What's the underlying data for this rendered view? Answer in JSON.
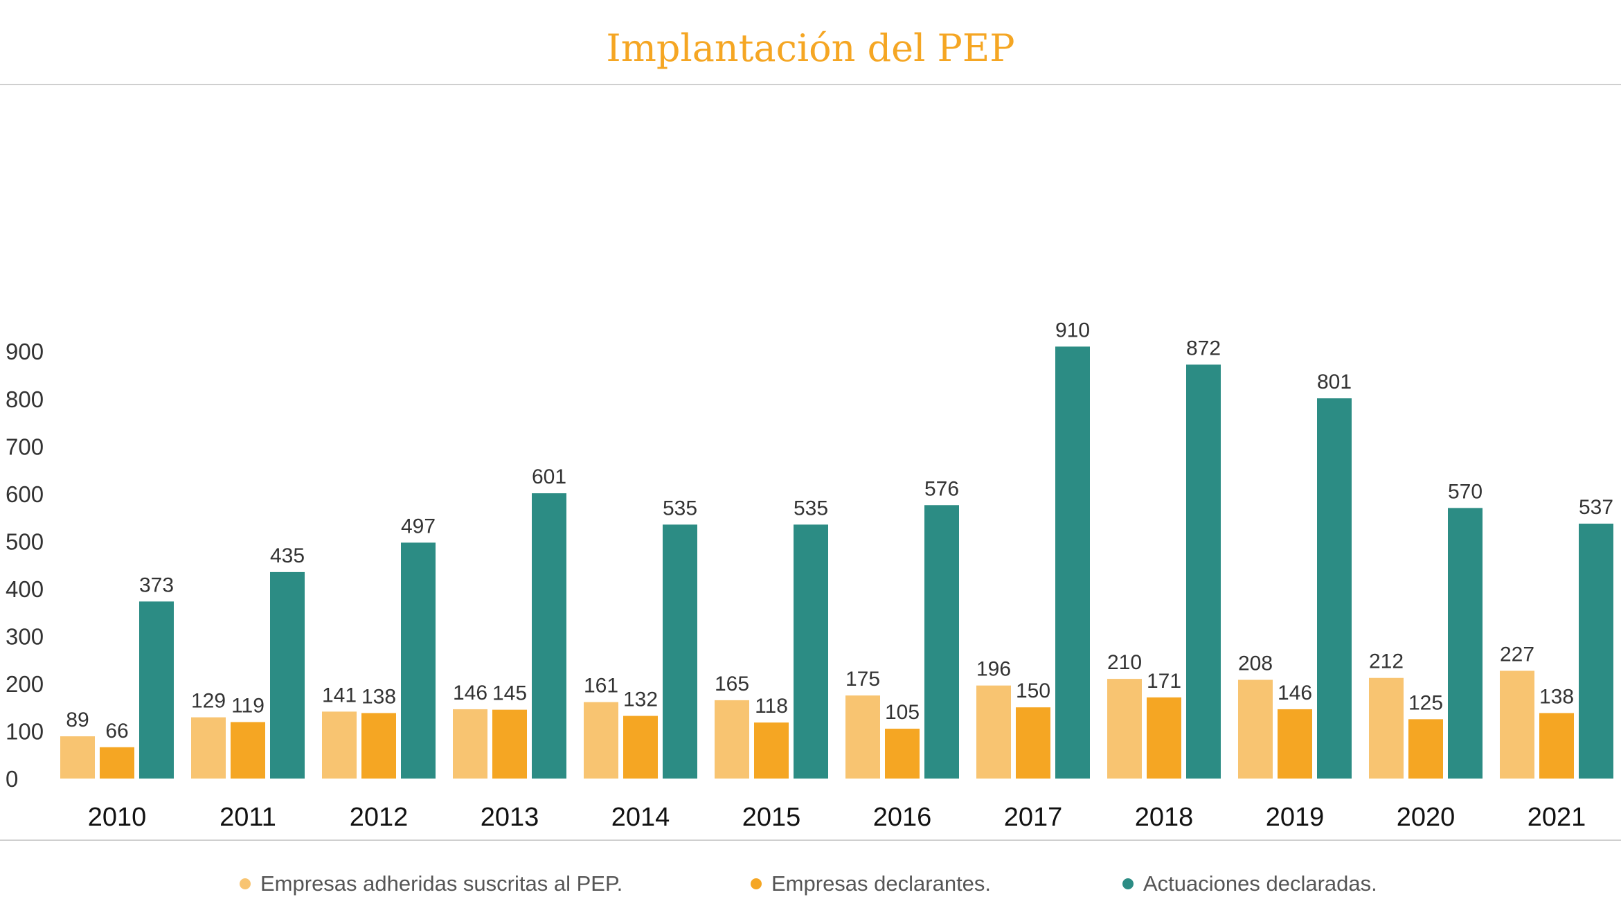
{
  "chart_data": {
    "type": "bar",
    "title": "Implantación del PEP",
    "title_color": "#F5A623",
    "categories": [
      "2010",
      "2011",
      "2012",
      "2013",
      "2014",
      "2015",
      "2016",
      "2017",
      "2018",
      "2019",
      "2020",
      "2021"
    ],
    "series": [
      {
        "name": "Empresas adheridas suscritas al PEP.",
        "color": "#F8C471",
        "values": [
          89,
          129,
          141,
          146,
          161,
          165,
          175,
          196,
          210,
          208,
          212,
          227
        ]
      },
      {
        "name": "Empresas declarantes.",
        "color": "#F5A623",
        "values": [
          66,
          119,
          138,
          145,
          132,
          118,
          105,
          150,
          171,
          146,
          125,
          138
        ]
      },
      {
        "name": "Actuaciones declaradas.",
        "color": "#2C8C84",
        "values": [
          373,
          435,
          497,
          601,
          535,
          535,
          576,
          910,
          872,
          801,
          570,
          537
        ]
      }
    ],
    "ylim": [
      0,
      950
    ],
    "yticks": [
      0,
      100,
      200,
      300,
      400,
      500,
      600,
      700,
      800,
      900
    ],
    "grid": false,
    "legend_position": "bottom"
  }
}
